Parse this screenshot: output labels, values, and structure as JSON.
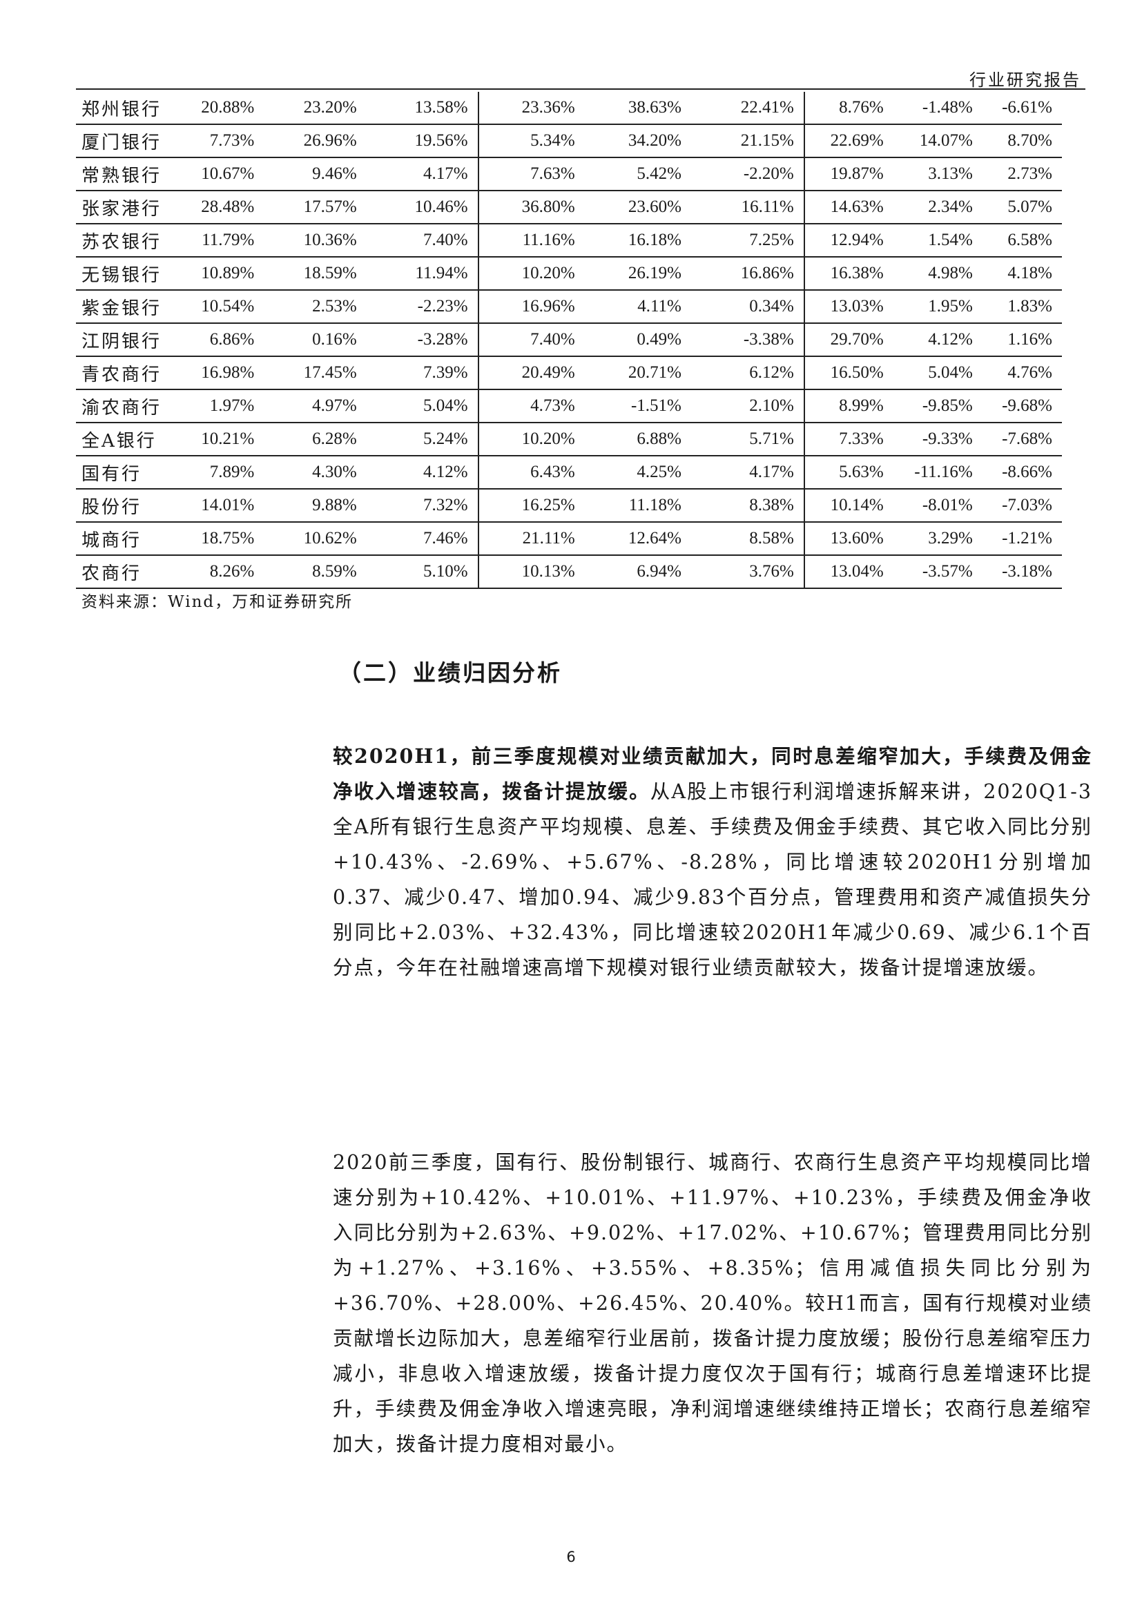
{
  "header": {
    "label": "行业研究报告"
  },
  "table": {
    "rows": [
      {
        "name": "郑州银行",
        "v": [
          "20.88%",
          "23.20%",
          "13.58%",
          "23.36%",
          "38.63%",
          "22.41%",
          "8.76%",
          "-1.48%",
          "-6.61%"
        ]
      },
      {
        "name": "厦门银行",
        "v": [
          "7.73%",
          "26.96%",
          "19.56%",
          "5.34%",
          "34.20%",
          "21.15%",
          "22.69%",
          "14.07%",
          "8.70%"
        ]
      },
      {
        "name": "常熟银行",
        "v": [
          "10.67%",
          "9.46%",
          "4.17%",
          "7.63%",
          "5.42%",
          "-2.20%",
          "19.87%",
          "3.13%",
          "2.73%"
        ]
      },
      {
        "name": "张家港行",
        "v": [
          "28.48%",
          "17.57%",
          "10.46%",
          "36.80%",
          "23.60%",
          "16.11%",
          "14.63%",
          "2.34%",
          "5.07%"
        ]
      },
      {
        "name": "苏农银行",
        "v": [
          "11.79%",
          "10.36%",
          "7.40%",
          "11.16%",
          "16.18%",
          "7.25%",
          "12.94%",
          "1.54%",
          "6.58%"
        ]
      },
      {
        "name": "无锡银行",
        "v": [
          "10.89%",
          "18.59%",
          "11.94%",
          "10.20%",
          "26.19%",
          "16.86%",
          "16.38%",
          "4.98%",
          "4.18%"
        ]
      },
      {
        "name": "紫金银行",
        "v": [
          "10.54%",
          "2.53%",
          "-2.23%",
          "16.96%",
          "4.11%",
          "0.34%",
          "13.03%",
          "1.95%",
          "1.83%"
        ]
      },
      {
        "name": "江阴银行",
        "v": [
          "6.86%",
          "0.16%",
          "-3.28%",
          "7.40%",
          "0.49%",
          "-3.38%",
          "29.70%",
          "4.12%",
          "1.16%"
        ]
      },
      {
        "name": "青农商行",
        "v": [
          "16.98%",
          "17.45%",
          "7.39%",
          "20.49%",
          "20.71%",
          "6.12%",
          "16.50%",
          "5.04%",
          "4.76%"
        ]
      },
      {
        "name": "渝农商行",
        "v": [
          "1.97%",
          "4.97%",
          "5.04%",
          "4.73%",
          "-1.51%",
          "2.10%",
          "8.99%",
          "-9.85%",
          "-9.68%"
        ]
      },
      {
        "name": "全A银行",
        "v": [
          "10.21%",
          "6.28%",
          "5.24%",
          "10.20%",
          "6.88%",
          "5.71%",
          "7.33%",
          "-9.33%",
          "-7.68%"
        ]
      },
      {
        "name": "国有行",
        "v": [
          "7.89%",
          "4.30%",
          "4.12%",
          "6.43%",
          "4.25%",
          "4.17%",
          "5.63%",
          "-11.16%",
          "-8.66%"
        ]
      },
      {
        "name": "股份行",
        "v": [
          "14.01%",
          "9.88%",
          "7.32%",
          "16.25%",
          "11.18%",
          "8.38%",
          "10.14%",
          "-8.01%",
          "-7.03%"
        ]
      },
      {
        "name": "城商行",
        "v": [
          "18.75%",
          "10.62%",
          "7.46%",
          "21.11%",
          "12.64%",
          "8.58%",
          "13.60%",
          "3.29%",
          "-1.21%"
        ]
      },
      {
        "name": "农商行",
        "v": [
          "8.26%",
          "8.59%",
          "5.10%",
          "10.13%",
          "6.94%",
          "3.76%",
          "13.04%",
          "-3.57%",
          "-3.18%"
        ]
      }
    ]
  },
  "source_note": "资料来源：Wind，万和证券研究所",
  "section_title": "（二）业绩归因分析",
  "paragraph1": {
    "lead": "较2020H1，前三季度规模对业绩贡献加大，同时息差缩窄加大，手续费及佣金净收入增速较高，拨备计提放缓。",
    "body": "从A股上市银行利润增速拆解来讲，2020Q1-3全A所有银行生息资产平均规模、息差、手续费及佣金手续费、其它收入同比分别+10.43%、-2.69%、+5.67%、-8.28%，同比增速较2020H1分别增加0.37、减少0.47、增加0.94、减少9.83个百分点，管理费用和资产减值损失分别同比+2.03%、+32.43%，同比增速较2020H1年减少0.69、减少6.1个百分点，今年在社融增速高增下规模对银行业绩贡献较大，拨备计提增速放缓。"
  },
  "paragraph2": "2020前三季度，国有行、股份制银行、城商行、农商行生息资产平均规模同比增速分别为+10.42%、+10.01%、+11.97%、+10.23%，手续费及佣金净收入同比分别为+2.63%、+9.02%、+17.02%、+10.67%；管理费用同比分别为+1.27%、+3.16%、+3.55%、+8.35%；信用减值损失同比分别为+36.70%、+28.00%、+26.45%、20.40%。较H1而言，国有行规模对业绩贡献增长边际加大，息差缩窄行业居前，拨备计提力度放缓；股份行息差缩窄压力减小，非息收入增速放缓，拨备计提力度仅次于国有行；城商行息差增速环比提升，手续费及佣金净收入增速亮眼，净利润增速继续维持正增长；农商行息差缩窄加大，拨备计提力度相对最小。",
  "page_number": "6"
}
